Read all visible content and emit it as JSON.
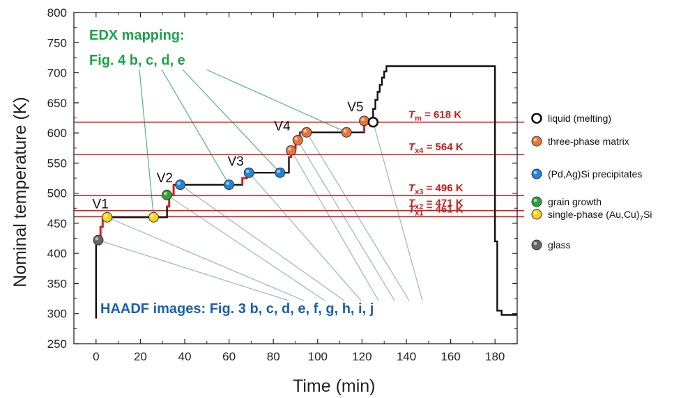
{
  "colors": {
    "ref_line": "#d8201e",
    "trace": "#111111",
    "highlight": "#d8201e",
    "edx_color": "#1aa346",
    "haadf_color": "#1a5fae",
    "edx_line": "#4cb87a",
    "haadf_line": "#8fb7d3",
    "markers": {
      "liquid": "#ffffff",
      "three_phase": "#e8743a",
      "precipitates": "#1f86d6",
      "grain_growth": "#2aa33a",
      "single_phase": "#f7d417",
      "glass": "#666666"
    }
  },
  "chart_data": {
    "type": "line",
    "xlabel": "Time (min)",
    "ylabel": "Nominal temperature (K)",
    "xlim": [
      -10,
      190
    ],
    "ylim": [
      250,
      800
    ],
    "xticks": [
      0,
      20,
      40,
      60,
      80,
      100,
      120,
      140,
      160,
      180
    ],
    "yticks": [
      250,
      300,
      350,
      400,
      450,
      500,
      550,
      600,
      650,
      700,
      750,
      800
    ],
    "grid": false,
    "series": [
      {
        "values_xy": [
          [
            0,
            292
          ],
          [
            0,
            422
          ],
          [
            2,
            422
          ],
          [
            2,
            444
          ],
          [
            3,
            444
          ],
          [
            3,
            460
          ],
          [
            27,
            460
          ],
          [
            32,
            460
          ],
          [
            32,
            478
          ],
          [
            33,
            478
          ],
          [
            33,
            497
          ],
          [
            35,
            497
          ],
          [
            35,
            514
          ],
          [
            60,
            514
          ],
          [
            66,
            514
          ],
          [
            66,
            525
          ],
          [
            68,
            525
          ],
          [
            68,
            534
          ],
          [
            84,
            534
          ],
          [
            87,
            534
          ],
          [
            87,
            560
          ],
          [
            88,
            560
          ],
          [
            88,
            574
          ],
          [
            90,
            574
          ],
          [
            90,
            588
          ],
          [
            92,
            588
          ],
          [
            92,
            601
          ],
          [
            114,
            601
          ],
          [
            121,
            601
          ],
          [
            121,
            620
          ],
          [
            125,
            620
          ],
          [
            125,
            640
          ],
          [
            126,
            640
          ],
          [
            126,
            655
          ],
          [
            127,
            655
          ],
          [
            127,
            668
          ],
          [
            128,
            668
          ],
          [
            128,
            680
          ],
          [
            129,
            680
          ],
          [
            129,
            692
          ],
          [
            130,
            692
          ],
          [
            130,
            702
          ],
          [
            131,
            702
          ],
          [
            131,
            711
          ],
          [
            180,
            711
          ],
          [
            180,
            420
          ],
          [
            181,
            420
          ],
          [
            181,
            305
          ],
          [
            183,
            305
          ],
          [
            183,
            298
          ],
          [
            190,
            298
          ]
        ]
      }
    ],
    "highlight_segments": [
      [
        [
          2,
          422
        ],
        [
          2,
          444
        ],
        [
          3,
          444
        ],
        [
          3,
          460
        ]
      ],
      [
        [
          32,
          478
        ],
        [
          33,
          478
        ],
        [
          33,
          497
        ],
        [
          35,
          497
        ],
        [
          35,
          514
        ]
      ],
      [
        [
          66,
          514
        ],
        [
          66,
          525
        ],
        [
          68,
          525
        ],
        [
          68,
          534
        ]
      ],
      [
        [
          87,
          560
        ],
        [
          88,
          560
        ],
        [
          88,
          574
        ],
        [
          90,
          574
        ],
        [
          90,
          588
        ],
        [
          92,
          588
        ],
        [
          92,
          601
        ]
      ],
      [
        [
          121,
          601
        ],
        [
          121,
          620
        ],
        [
          125,
          620
        ]
      ]
    ],
    "reference_lines": [
      {
        "y": 618,
        "label_italic": "T",
        "label_sub": "m",
        "label_rest": " = 618 K"
      },
      {
        "y": 564,
        "label_italic": "T",
        "label_sub": "x4",
        "label_rest": " = 564 K"
      },
      {
        "y": 496,
        "label_italic": "T",
        "label_sub": "x3",
        "label_rest": " = 496 K"
      },
      {
        "y": 471,
        "label_italic": "T",
        "label_sub": "x2",
        "label_rest": " = 471 K"
      },
      {
        "y": 461,
        "label_italic": "T",
        "label_sub": "x1",
        "label_rest": " = 461 K"
      }
    ],
    "markers": [
      {
        "x": 1,
        "y": 422,
        "kind": "glass"
      },
      {
        "x": 5,
        "y": 460,
        "kind": "single_phase"
      },
      {
        "x": 26,
        "y": 460,
        "kind": "single_phase"
      },
      {
        "x": 32,
        "y": 497,
        "kind": "grain_growth"
      },
      {
        "x": 38,
        "y": 514,
        "kind": "precipitates"
      },
      {
        "x": 60,
        "y": 514,
        "kind": "precipitates"
      },
      {
        "x": 69,
        "y": 534,
        "kind": "precipitates"
      },
      {
        "x": 83,
        "y": 534,
        "kind": "precipitates"
      },
      {
        "x": 88,
        "y": 571,
        "kind": "three_phase"
      },
      {
        "x": 91,
        "y": 588,
        "kind": "three_phase"
      },
      {
        "x": 95,
        "y": 601,
        "kind": "three_phase"
      },
      {
        "x": 113,
        "y": 601,
        "kind": "three_phase"
      },
      {
        "x": 121,
        "y": 620,
        "kind": "three_phase"
      },
      {
        "x": 125,
        "y": 618,
        "kind": "liquid"
      }
    ],
    "stage_labels": [
      {
        "text": "V1",
        "x": 2,
        "y": 475
      },
      {
        "text": "V2",
        "x": 31,
        "y": 518
      },
      {
        "text": "V3",
        "x": 63,
        "y": 546
      },
      {
        "text": "V4",
        "x": 84,
        "y": 604
      },
      {
        "text": "V5",
        "x": 117,
        "y": 636
      }
    ],
    "legend": [
      {
        "kind": "liquid",
        "label": "liquid (melting)"
      },
      {
        "kind": "three_phase",
        "label": "three-phase matrix"
      },
      {
        "kind": "precipitates",
        "label": "(Pd,Ag)Si precipitates"
      },
      {
        "kind": "grain_growth",
        "label": "grain growth"
      },
      {
        "kind": "single_phase",
        "label_pre": "single-phase (Au,Cu)",
        "label_sub": "7",
        "label_post": "Si"
      },
      {
        "kind": "glass",
        "label": "glass"
      }
    ],
    "legend_placement": "right",
    "annotations": {
      "edx_line1": "EDX mapping:",
      "edx_line2": "Fig. 4 b, c, d, e",
      "haadf": "HAADF images: Fig. 3 b, c, d, e, f, g, h, i, j"
    },
    "edx_targets": [
      [
        26,
        460
      ],
      [
        60,
        514
      ],
      [
        83,
        534
      ],
      [
        113,
        601
      ]
    ],
    "haadf_targets": [
      [
        1,
        422
      ],
      [
        5,
        460
      ],
      [
        32,
        497
      ],
      [
        38,
        514
      ],
      [
        69,
        534
      ],
      [
        88,
        571
      ],
      [
        91,
        588
      ],
      [
        95,
        601
      ],
      [
        125,
        618
      ]
    ]
  }
}
